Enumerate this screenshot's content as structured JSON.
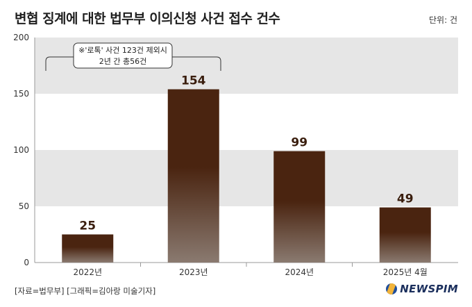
{
  "title": "변협 징계에 대한 법무부 이의신청 사건 접수 건수",
  "unit_label": "단위: 건",
  "annotation": {
    "line1": "※'로톡' 사건 123건 제외시",
    "line2": "2년 간 총56건"
  },
  "source": "[자료=법무부] [그래픽=김아랑 미술기자]",
  "logo": "NEWSPIM",
  "colors": {
    "bar_top": "#4a2410",
    "bar_bottom": "#8a7a70",
    "band": "#e6e6e6",
    "text": "#222222"
  },
  "chart_data": {
    "type": "bar",
    "categories": [
      "2022년",
      "2023년",
      "2024년",
      "2025년 4월"
    ],
    "values": [
      25,
      154,
      99,
      49
    ],
    "value_labels": [
      "25",
      "154",
      "99",
      "49"
    ],
    "ylim": [
      0,
      200
    ],
    "yticks": [
      0,
      50,
      100,
      150,
      200
    ],
    "ytick_labels": [
      "0",
      "50",
      "100",
      "150",
      "200"
    ],
    "grid": "alternating horizontal bands"
  }
}
